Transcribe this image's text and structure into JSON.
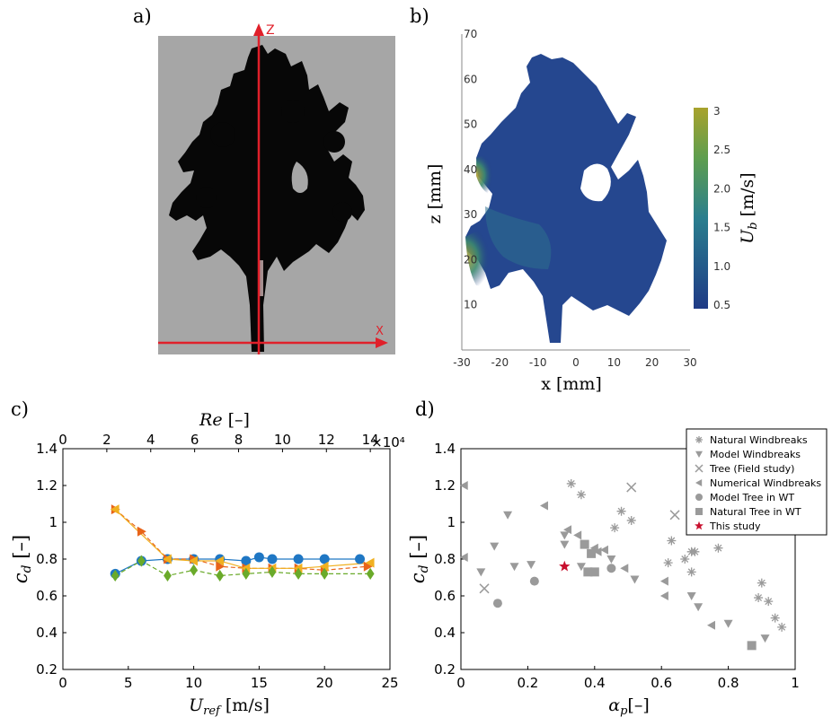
{
  "panels": {
    "a": "a)",
    "b": "b)",
    "c": "c)",
    "d": "d)"
  },
  "photo": {
    "z_axis": "Z",
    "x_axis": "X"
  },
  "chart_data": [
    {
      "panel": "b",
      "type": "heatmap",
      "xlabel": "x [mm]",
      "ylabel": "z [mm]",
      "colorbar_label": "U_b [m/s]",
      "xlim": [
        -30,
        30
      ],
      "ylim": [
        0,
        70
      ],
      "xticks": [
        "-30",
        "-20",
        "-10",
        "0",
        "10",
        "20",
        "30"
      ],
      "yticks": [
        "10",
        "20",
        "30",
        "40",
        "50",
        "60",
        "70"
      ],
      "colorbar_range": [
        0.5,
        3
      ],
      "colorbar_ticks": [
        "3",
        "2.5",
        "2.0",
        "1.5",
        "1.0",
        "0.5"
      ],
      "colormap": [
        "#1f3b86",
        "#2a8c8c",
        "#a8a22c"
      ]
    },
    {
      "panel": "c",
      "type": "line",
      "xlabel": "U_ref [m/s]",
      "ylabel": "c_d [–]",
      "top_xlabel": "Re [–]",
      "top_multiplier": "×10⁴",
      "xlim": [
        0,
        25
      ],
      "ylim": [
        0.2,
        1.4
      ],
      "xticks": [
        "0",
        "5",
        "10",
        "15",
        "20",
        "25"
      ],
      "yticks": [
        "0.2",
        "0.4",
        "0.6",
        "0.8",
        "1",
        "1.2",
        "1.4"
      ],
      "top_ticks": [
        "0",
        "2",
        "4",
        "6",
        "8",
        "10",
        "12",
        "14"
      ],
      "series": [
        {
          "color": "#1f77c4",
          "marker": "circle",
          "dash": "solid",
          "x": [
            4,
            6,
            8,
            10,
            12,
            14,
            15,
            16,
            18,
            20,
            22.7
          ],
          "y": [
            0.72,
            0.79,
            0.8,
            0.8,
            0.8,
            0.79,
            0.81,
            0.8,
            0.8,
            0.8,
            0.8
          ]
        },
        {
          "color": "#e8641a",
          "marker": "triangle-right",
          "dash": "dashed",
          "x": [
            4,
            6,
            8,
            10,
            12,
            14,
            16,
            18,
            20,
            23.3
          ],
          "y": [
            1.07,
            0.95,
            0.8,
            0.8,
            0.76,
            0.75,
            0.75,
            0.75,
            0.74,
            0.76
          ]
        },
        {
          "color": "#f0b020",
          "marker": "triangle-left",
          "dash": "solid",
          "x": [
            4,
            8,
            10,
            12,
            14,
            16,
            18,
            20,
            23.5
          ],
          "y": [
            1.07,
            0.8,
            0.79,
            0.79,
            0.75,
            0.75,
            0.75,
            0.76,
            0.78
          ]
        },
        {
          "color": "#6aaa2a",
          "marker": "diamond",
          "dash": "dashed",
          "x": [
            4,
            6,
            8,
            10,
            12,
            14,
            16,
            18,
            20,
            23.5
          ],
          "y": [
            0.71,
            0.79,
            0.71,
            0.74,
            0.71,
            0.72,
            0.73,
            0.72,
            0.72,
            0.72
          ]
        }
      ]
    },
    {
      "panel": "d",
      "type": "scatter",
      "xlabel": "α_p [–]",
      "ylabel": "c_d [–]",
      "xlim": [
        0,
        1
      ],
      "ylim": [
        0.2,
        1.4
      ],
      "xticks": [
        "0",
        "0.2",
        "0.4",
        "0.6",
        "0.8",
        "1"
      ],
      "yticks": [
        "0.2",
        "0.4",
        "0.6",
        "0.8",
        "1",
        "1.2",
        "1.4"
      ],
      "legend_position": "top-right",
      "series": [
        {
          "name": "Natural Windbreaks",
          "marker": "asterisk",
          "color": "#9a9a9a",
          "points": [
            [
              0.33,
              1.21
            ],
            [
              0.36,
              1.15
            ],
            [
              0.48,
              1.06
            ],
            [
              0.51,
              1.01
            ],
            [
              0.46,
              0.97
            ],
            [
              0.63,
              0.9
            ],
            [
              0.67,
              0.8
            ],
            [
              0.62,
              0.78
            ],
            [
              0.69,
              0.84
            ],
            [
              0.7,
              0.84
            ],
            [
              0.69,
              0.73
            ],
            [
              0.77,
              0.86
            ],
            [
              0.9,
              0.67
            ],
            [
              0.89,
              0.59
            ],
            [
              0.92,
              0.57
            ],
            [
              0.94,
              0.48
            ],
            [
              0.96,
              0.43
            ]
          ]
        },
        {
          "name": "Model Windbreaks",
          "marker": "triangle-down",
          "color": "#9a9a9a",
          "points": [
            [
              0.06,
              0.73
            ],
            [
              0.1,
              0.87
            ],
            [
              0.14,
              1.04
            ],
            [
              0.16,
              0.76
            ],
            [
              0.21,
              0.77
            ],
            [
              0.31,
              0.93
            ],
            [
              0.31,
              0.88
            ],
            [
              0.36,
              0.76
            ],
            [
              0.39,
              0.73
            ],
            [
              0.45,
              0.8
            ],
            [
              0.52,
              0.69
            ],
            [
              0.69,
              0.6
            ],
            [
              0.71,
              0.54
            ],
            [
              0.8,
              0.45
            ],
            [
              0.91,
              0.37
            ]
          ]
        },
        {
          "name": "Tree (Field study)",
          "marker": "x",
          "color": "#9a9a9a",
          "points": [
            [
              0.07,
              0.64
            ],
            [
              0.51,
              1.19
            ],
            [
              0.64,
              1.04
            ]
          ]
        },
        {
          "name": "Numerical Windbreaks",
          "marker": "triangle-left",
          "color": "#9a9a9a",
          "points": [
            [
              0.01,
              1.2
            ],
            [
              0.01,
              0.81
            ],
            [
              0.25,
              1.09
            ],
            [
              0.32,
              0.96
            ],
            [
              0.35,
              0.93
            ],
            [
              0.4,
              0.86
            ],
            [
              0.43,
              0.85
            ],
            [
              0.41,
              0.84
            ],
            [
              0.49,
              0.75
            ],
            [
              0.61,
              0.68
            ],
            [
              0.61,
              0.6
            ],
            [
              0.75,
              0.44
            ]
          ]
        },
        {
          "name": "Model Tree in WT",
          "marker": "circle",
          "color": "#9a9a9a",
          "points": [
            [
              0.11,
              0.56
            ],
            [
              0.22,
              0.68
            ],
            [
              0.45,
              0.75
            ]
          ]
        },
        {
          "name": "Natural Tree in WT",
          "marker": "square",
          "color": "#9a9a9a",
          "points": [
            [
              0.37,
              0.88
            ],
            [
              0.39,
              0.83
            ],
            [
              0.38,
              0.73
            ],
            [
              0.4,
              0.73
            ],
            [
              0.87,
              0.33
            ]
          ]
        },
        {
          "name": "This study",
          "marker": "star",
          "color": "#c8102e",
          "points": [
            [
              0.31,
              0.76
            ]
          ]
        }
      ]
    }
  ]
}
